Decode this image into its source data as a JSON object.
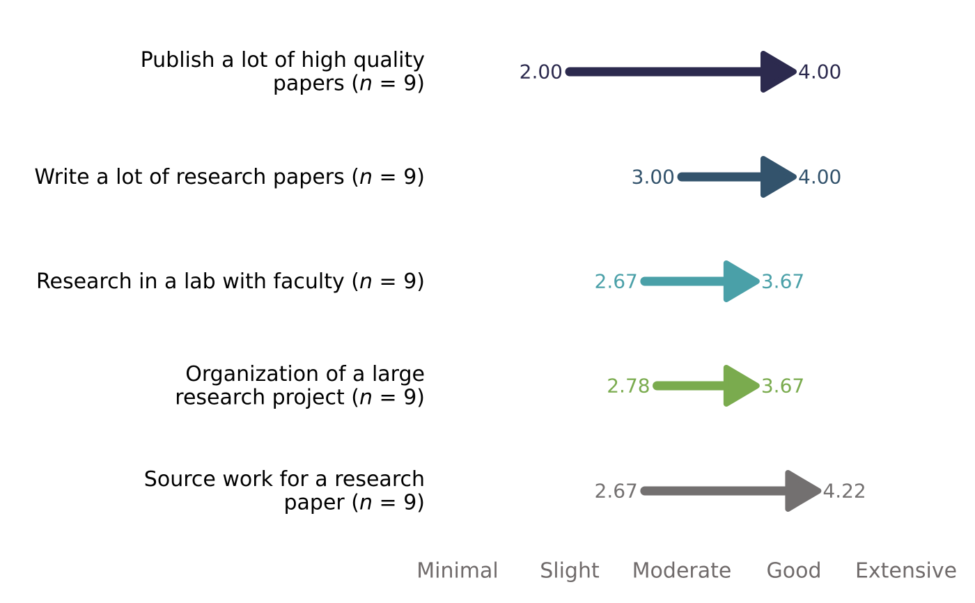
{
  "chart_data": {
    "type": "arrow",
    "x_scale": {
      "min": 1,
      "max": 5
    },
    "ticks": [
      "Minimal",
      "Slight",
      "Moderate",
      "Good",
      "Extensive"
    ],
    "items": [
      {
        "label_lines": [
          "Publish a lot of high quality",
          "papers ("
        ],
        "n_text": "9",
        "start": 2.0,
        "end": 4.0,
        "start_label": "2.00",
        "end_label": "4.00",
        "color": "#2c2a4e"
      },
      {
        "label_lines": [
          "Write a lot of research papers ("
        ],
        "n_text": "9",
        "start": 3.0,
        "end": 4.0,
        "start_label": "3.00",
        "end_label": "4.00",
        "color": "#33536c"
      },
      {
        "label_lines": [
          "Research in a lab with faculty ("
        ],
        "n_text": "9",
        "start": 2.67,
        "end": 3.67,
        "start_label": "2.67",
        "end_label": "3.67",
        "color": "#4aa0a8"
      },
      {
        "label_lines": [
          "Organization of a large",
          "research project ("
        ],
        "n_text": "9",
        "start": 2.78,
        "end": 3.67,
        "start_label": "2.78",
        "end_label": "3.67",
        "color": "#7aab4e"
      },
      {
        "label_lines": [
          "Source work for a research",
          "paper ("
        ],
        "n_text": "9",
        "start": 2.67,
        "end": 4.22,
        "start_label": "2.67",
        "end_label": "4.22",
        "color": "#737070"
      }
    ]
  }
}
